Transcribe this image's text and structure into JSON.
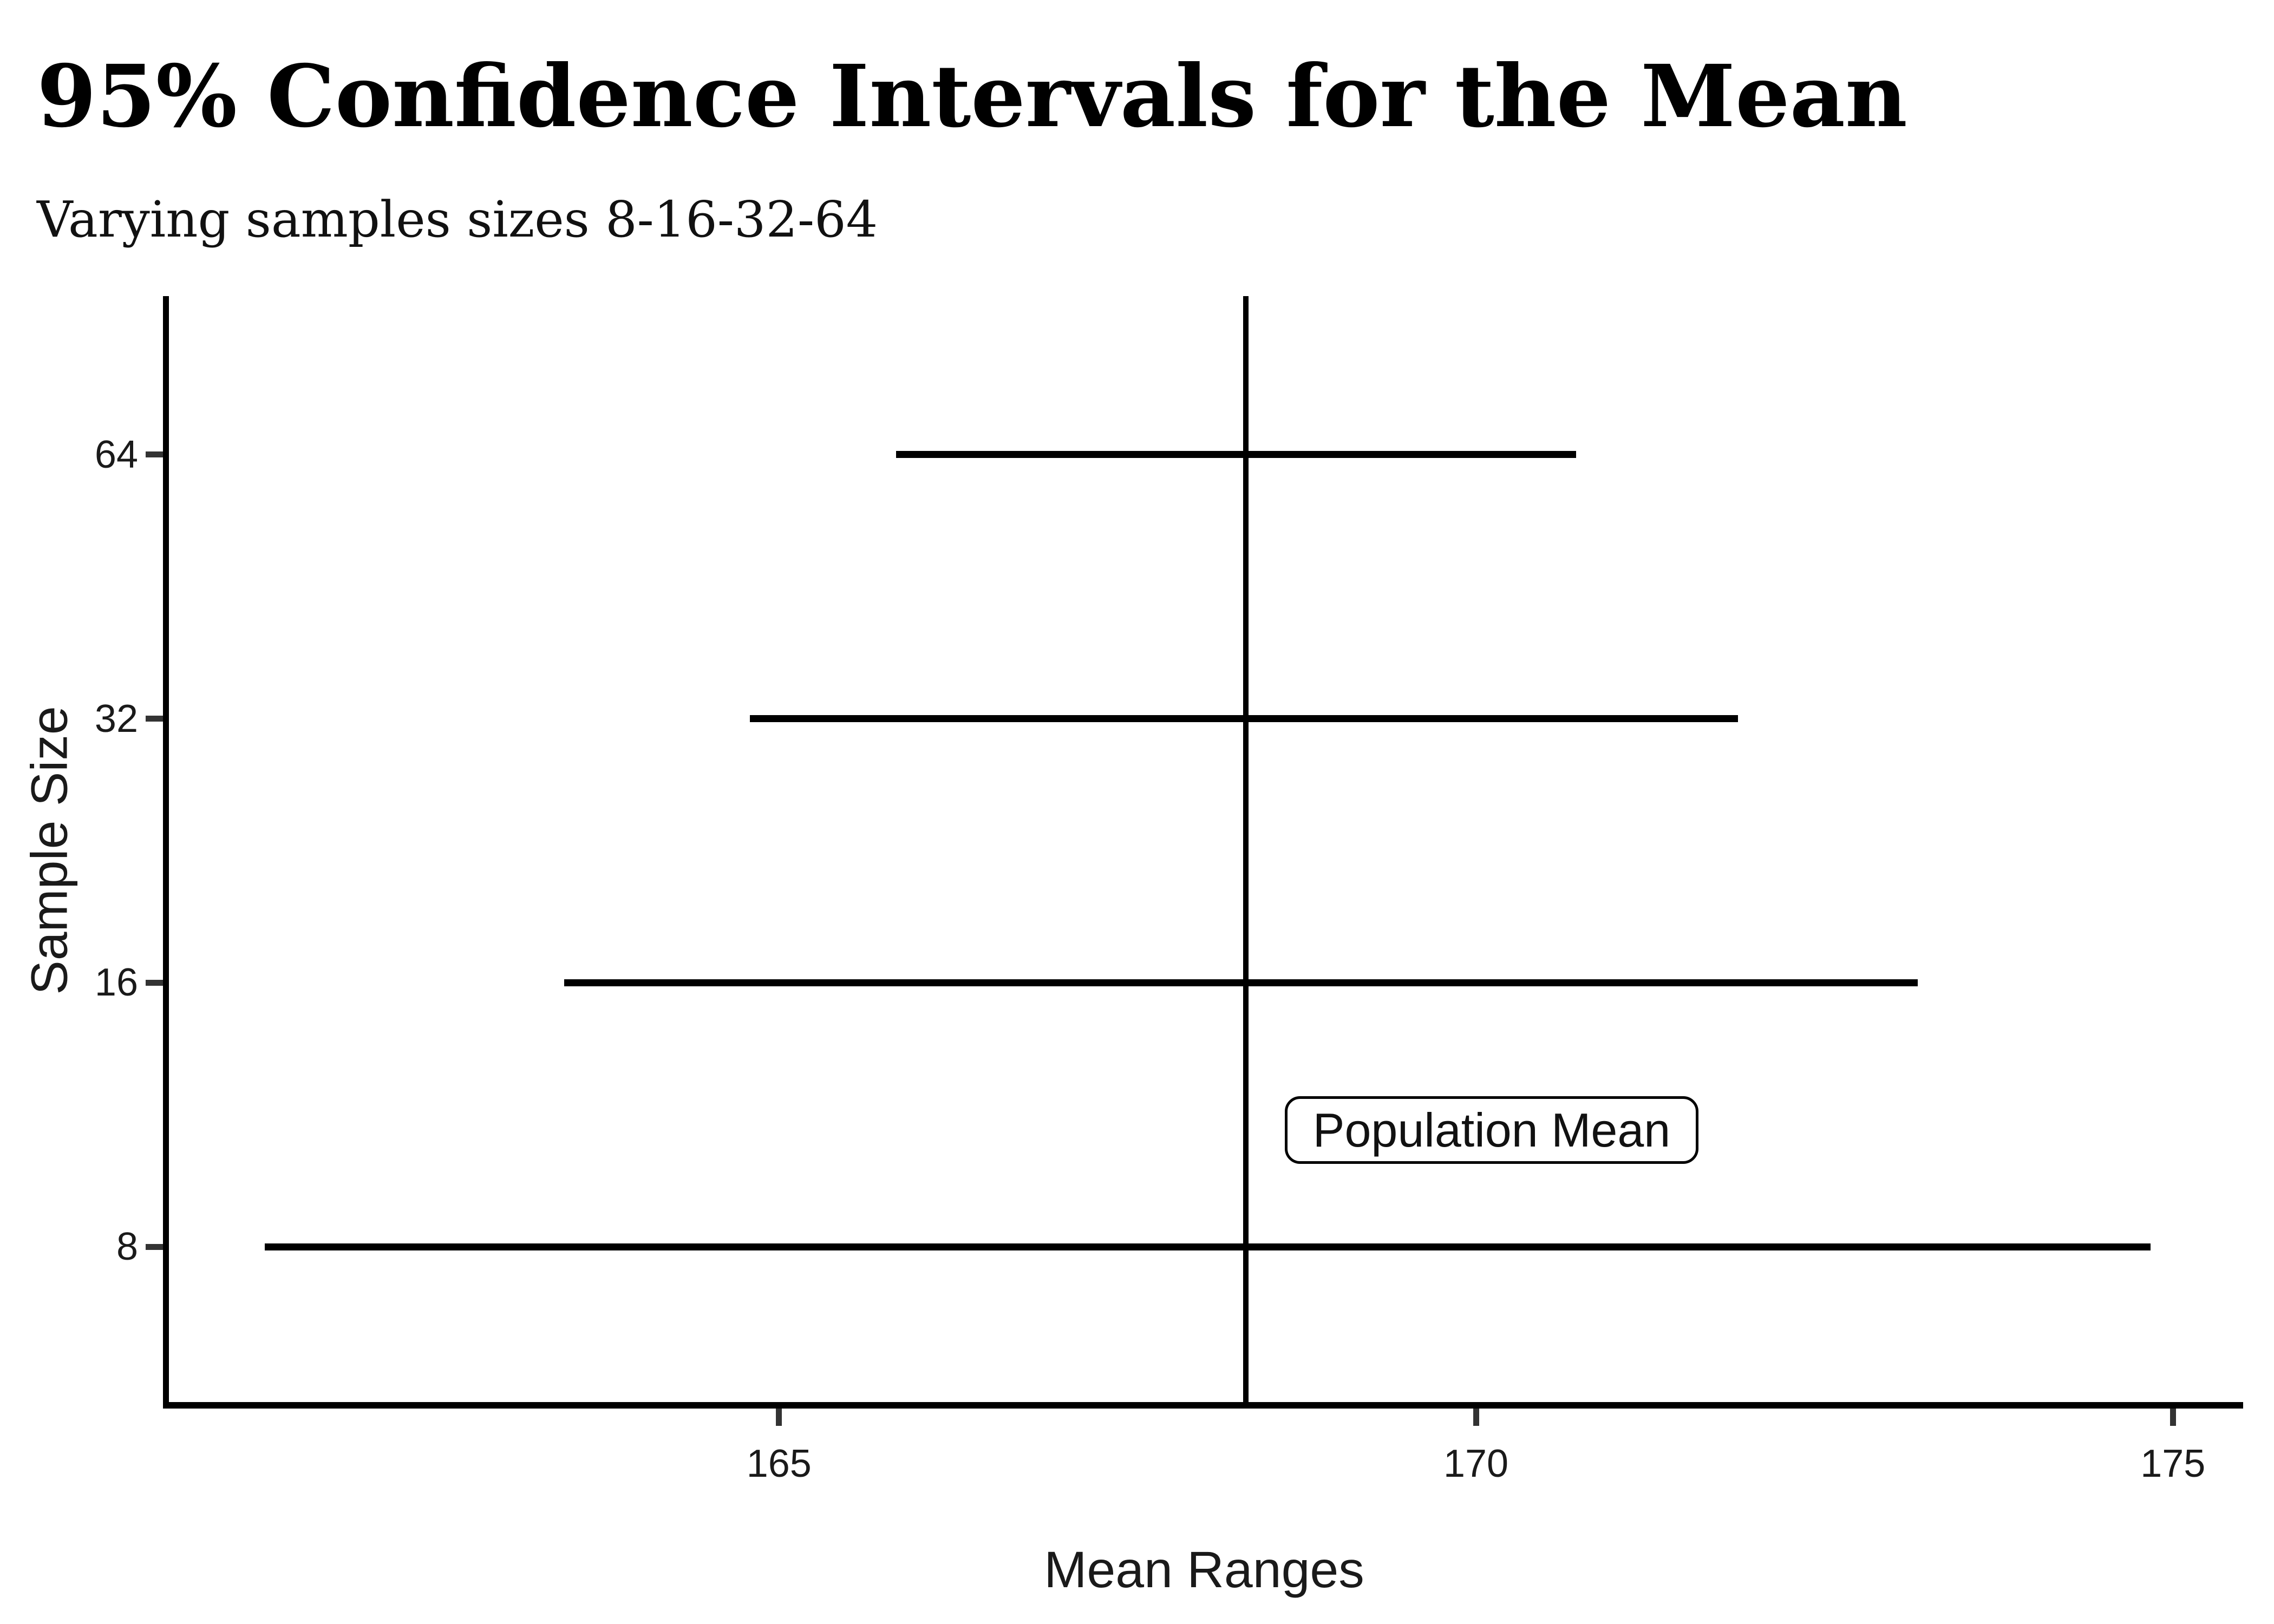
{
  "colors": {
    "background": "#ffffff",
    "line": "#000000",
    "tick": "#333333",
    "tick_text": "#1a1a1a"
  },
  "chart_data": {
    "type": "errorbar",
    "title": "95% Confidence Intervals for the Mean",
    "subtitle": "Varying samples sizes 8-16-32-64",
    "xlabel": "Mean Ranges",
    "ylabel": "Sample Size",
    "confidence_level": "95%",
    "x_ticks": [
      165,
      170,
      175
    ],
    "y_ticks": [
      8,
      16,
      32,
      64
    ],
    "y_scale": "log2",
    "xlim": [
      160.6,
      175.5
    ],
    "ylim_log2": [
      2.4,
      6.6
    ],
    "grid": "off",
    "legend": "none",
    "population_mean": {
      "label": "Population Mean",
      "x": 168.35
    },
    "series": [
      {
        "sample_size": 8,
        "ci_low": 161.31,
        "ci_high": 174.84
      },
      {
        "sample_size": 16,
        "ci_low": 163.46,
        "ci_high": 173.17
      },
      {
        "sample_size": 32,
        "ci_low": 164.79,
        "ci_high": 171.88
      },
      {
        "sample_size": 64,
        "ci_low": 165.84,
        "ci_high": 170.72
      }
    ]
  }
}
